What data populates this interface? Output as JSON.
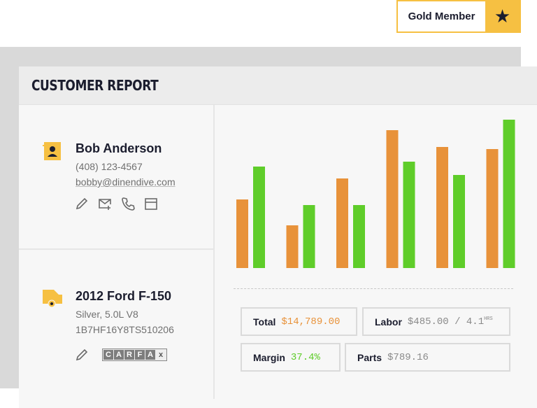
{
  "badge": {
    "label": "Gold Member",
    "icon": "star-icon",
    "color": "#f6c042"
  },
  "report": {
    "title": "CUSTOMER REPORT"
  },
  "customer": {
    "name": "Bob Anderson",
    "phone": "(408) 123-4567",
    "email": "bobby@dinendive.com",
    "icon": "contact-card-icon",
    "actions": [
      "edit-icon",
      "email-add-icon",
      "phone-icon",
      "calendar-icon"
    ]
  },
  "vehicle": {
    "title": "2012 Ford F-150",
    "details": "Silver, 5.0L V8",
    "vin": "1B7HF16Y8TS510206",
    "icon": "truck-icon",
    "carfax": [
      "C",
      "A",
      "R",
      "F",
      "A",
      "x"
    ]
  },
  "stats": {
    "total_label": "Total",
    "total_value": "$14,789.00",
    "labor_label": "Labor",
    "labor_value": "$485.00 / 4.1",
    "labor_unit": "HRS",
    "margin_label": "Margin",
    "margin_value": "37.4%",
    "parts_label": "Parts",
    "parts_value": "$789.16"
  },
  "colors": {
    "orange": "#e8923a",
    "green": "#5fcd2a"
  },
  "chart_data": {
    "type": "bar",
    "series": [
      {
        "color": "#e8923a",
        "values": [
          98,
          61,
          128,
          197,
          173,
          170
        ]
      },
      {
        "color": "#5fcd2a",
        "values": [
          145,
          90,
          90,
          152,
          133,
          212
        ]
      }
    ]
  }
}
